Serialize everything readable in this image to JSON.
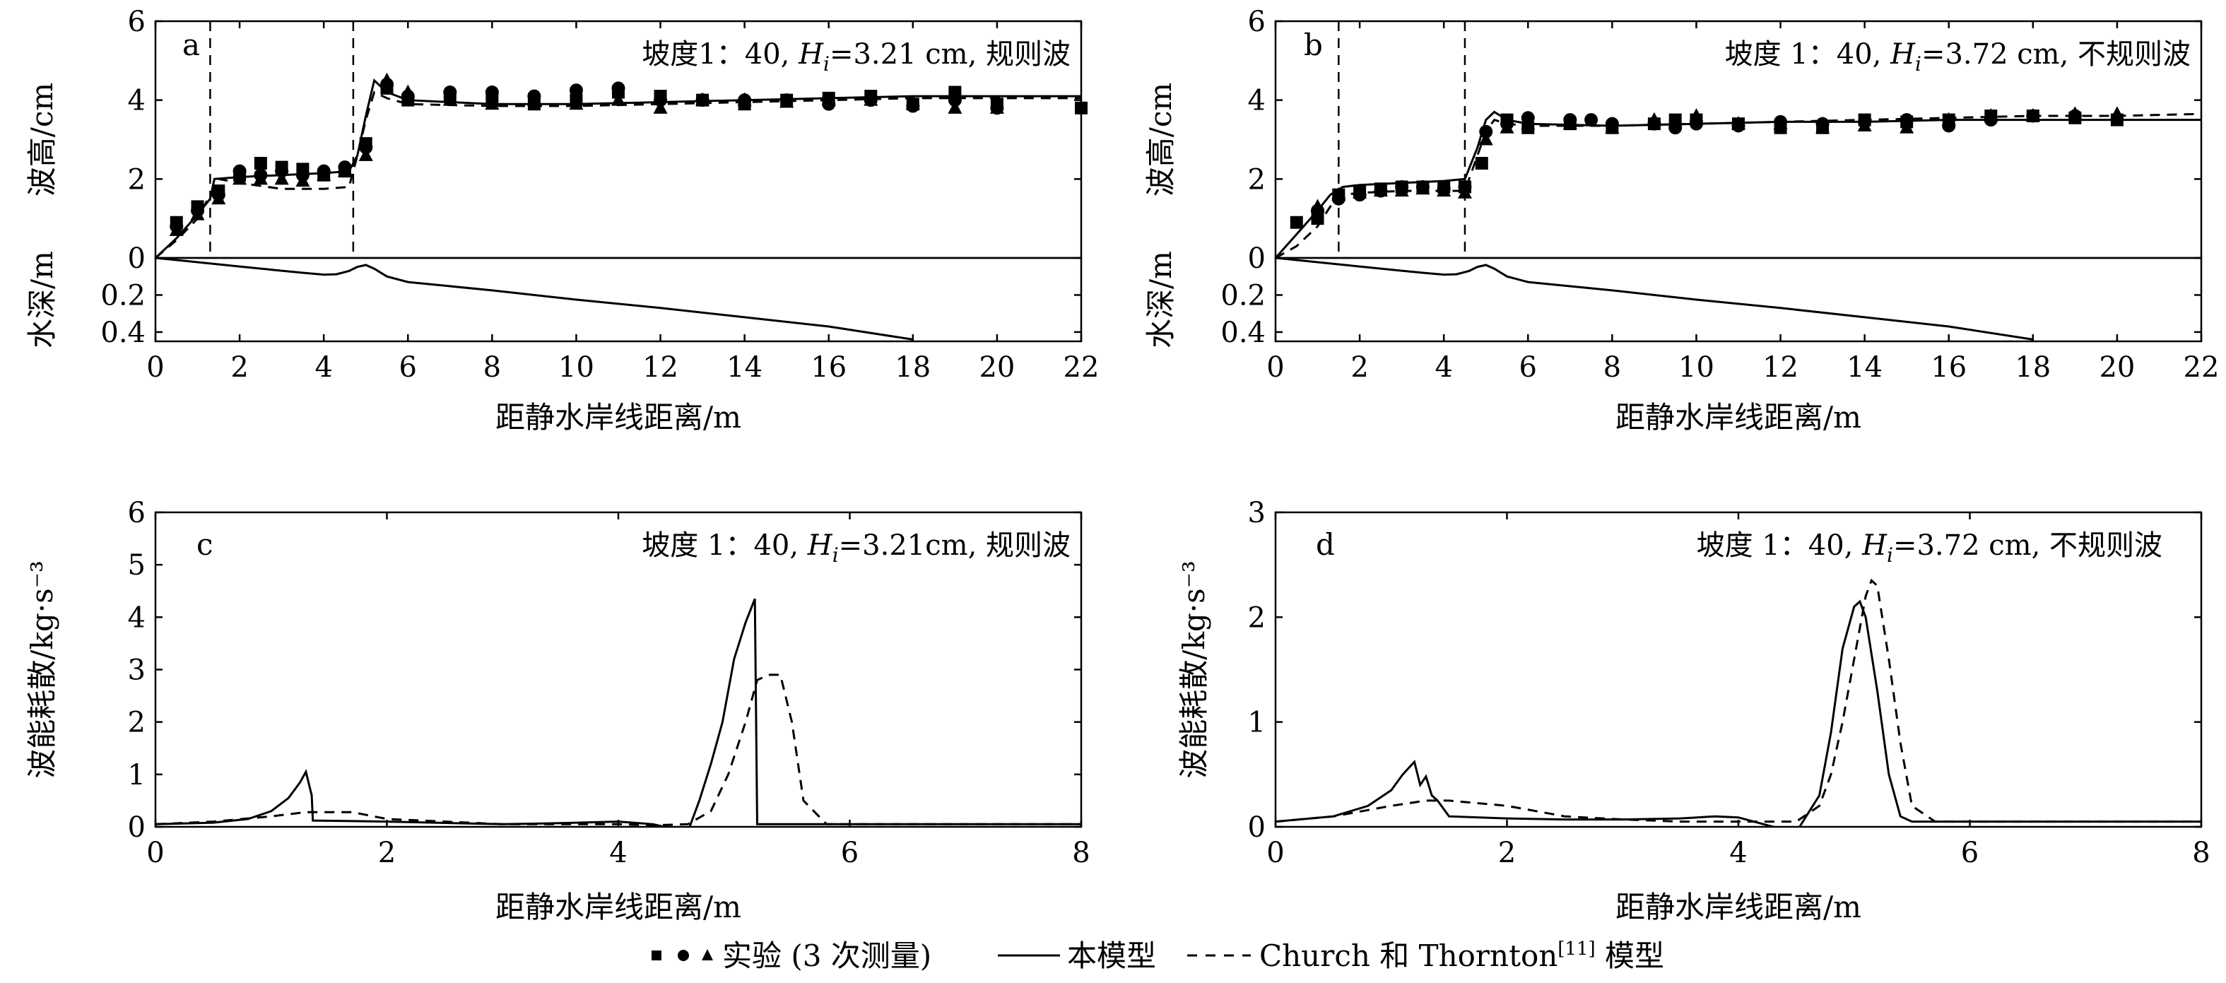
{
  "chart_data": [
    {
      "panel": "a",
      "type": "line",
      "title": "坡度1：40, H_i=3.21 cm, 规则波",
      "title_parts": {
        "pre": "坡度1：40, ",
        "var": "H",
        "sub": "i",
        "post": "=3.21 cm, 规则波"
      },
      "ylabel": "波高/cm",
      "xlabel": "距静水岸线距离/m",
      "ylim": [
        0,
        6
      ],
      "yticks": [
        "0",
        "2",
        "4",
        "6"
      ],
      "xlim": [
        0,
        22
      ],
      "xticks": [
        "0",
        "2",
        "4",
        "6",
        "8",
        "10",
        "12",
        "14",
        "16",
        "18",
        "20",
        "22"
      ],
      "vlines": [
        1.3,
        4.7
      ],
      "depth": {
        "ylabel": "水深/m",
        "ylim": [
          0,
          0.45
        ],
        "yticks": [
          "0.2",
          "0.4"
        ],
        "x": [
          0,
          1,
          2,
          3,
          3.5,
          4,
          4.3,
          4.6,
          4.8,
          5.0,
          5.2,
          5.5,
          6,
          8,
          10,
          12,
          14,
          16,
          18
        ],
        "y": [
          0,
          0.023,
          0.046,
          0.069,
          0.08,
          0.09,
          0.088,
          0.07,
          0.048,
          0.038,
          0.058,
          0.1,
          0.13,
          0.175,
          0.225,
          0.27,
          0.32,
          0.37,
          0.44
        ]
      },
      "series": [
        {
          "name": "本模型",
          "style": "solid",
          "x": [
            0,
            0.5,
            1.0,
            1.3,
            1.4,
            2,
            3,
            4,
            4.6,
            4.8,
            5.0,
            5.2,
            5.5,
            6,
            8,
            10,
            12,
            14,
            16,
            18,
            20,
            22
          ],
          "y": [
            0,
            0.5,
            1.1,
            1.5,
            2.0,
            2.05,
            2.1,
            2.15,
            2.2,
            2.6,
            3.6,
            4.5,
            4.2,
            4.0,
            3.9,
            3.9,
            3.95,
            4.0,
            4.05,
            4.1,
            4.1,
            4.1
          ]
        },
        {
          "name": "Church 和 Thornton[11] 模型",
          "style": "dashed",
          "x": [
            0,
            0.5,
            1.0,
            1.3,
            1.5,
            2,
            3,
            4,
            4.6,
            4.8,
            5.0,
            5.2,
            5.5,
            6,
            8,
            10,
            12,
            14,
            16,
            18,
            20,
            22
          ],
          "y": [
            0,
            0.45,
            1.0,
            1.6,
            2.0,
            1.9,
            1.75,
            1.75,
            1.8,
            2.6,
            3.5,
            4.2,
            4.05,
            3.9,
            3.85,
            3.85,
            3.9,
            3.95,
            4.0,
            4.05,
            4.05,
            4.05
          ]
        },
        {
          "name": "实验 1",
          "style": "square",
          "x": [
            0.5,
            1,
            1.5,
            2,
            2.5,
            3,
            3.5,
            4,
            4.5,
            5,
            5.5,
            6,
            7,
            8,
            9,
            10,
            11,
            12,
            13,
            14,
            15,
            16,
            17,
            18,
            19,
            20,
            22
          ],
          "y": [
            0.9,
            1.3,
            1.7,
            2.1,
            2.4,
            2.3,
            2.25,
            2.1,
            2.2,
            2.9,
            4.3,
            4.0,
            4.1,
            4.0,
            3.9,
            4.0,
            4.2,
            4.1,
            4.0,
            3.9,
            4.0,
            4.05,
            4.1,
            3.9,
            4.2,
            3.9,
            3.8
          ]
        },
        {
          "name": "实验 2",
          "style": "circle",
          "x": [
            0.5,
            1,
            1.5,
            2,
            2.5,
            3,
            3.5,
            4,
            4.5,
            5,
            5.5,
            6,
            7,
            8,
            9,
            10,
            11,
            12,
            13,
            14,
            15,
            16,
            17,
            18,
            19,
            20
          ],
          "y": [
            0.8,
            1.2,
            1.6,
            2.2,
            2.1,
            2.2,
            2.1,
            2.2,
            2.3,
            2.8,
            4.4,
            4.1,
            4.2,
            4.2,
            4.1,
            4.25,
            4.3,
            4.0,
            4.0,
            4.0,
            4.0,
            3.9,
            4.0,
            3.85,
            4.0,
            3.8
          ]
        },
        {
          "name": "实验 3",
          "style": "triangle",
          "x": [
            0.5,
            1,
            1.5,
            2,
            2.5,
            3,
            3.5,
            4,
            4.5,
            5,
            5.5,
            6,
            7,
            8,
            9,
            10,
            11,
            12,
            13,
            14,
            15,
            16,
            17,
            18,
            19,
            20
          ],
          "y": [
            0.7,
            1.1,
            1.5,
            2.0,
            2.0,
            2.0,
            1.95,
            2.1,
            2.2,
            2.6,
            4.5,
            4.2,
            4.0,
            3.9,
            4.0,
            3.9,
            4.0,
            3.8,
            4.0,
            4.0,
            3.95,
            4.0,
            4.0,
            3.9,
            3.8,
            3.8
          ]
        }
      ]
    },
    {
      "panel": "b",
      "type": "line",
      "title": "坡度 1：40, H_i=3.72 cm, 不规则波",
      "title_parts": {
        "pre": "坡度 1：40, ",
        "var": "H",
        "sub": "i",
        "post": "=3.72 cm, 不规则波"
      },
      "ylabel": "波高/cm",
      "xlabel": "距静水岸线距离/m",
      "ylim": [
        0,
        6
      ],
      "yticks": [
        "0",
        "2",
        "4",
        "6"
      ],
      "xlim": [
        0,
        22
      ],
      "xticks": [
        "0",
        "2",
        "4",
        "6",
        "8",
        "10",
        "12",
        "14",
        "16",
        "18",
        "20",
        "22"
      ],
      "vlines": [
        1.5,
        4.5
      ],
      "depth": {
        "ylabel": "水深/m",
        "ylim": [
          0,
          0.45
        ],
        "yticks": [
          "0.2",
          "0.4"
        ],
        "x": [
          0,
          1,
          2,
          3,
          3.5,
          4,
          4.3,
          4.6,
          4.8,
          5.0,
          5.2,
          5.5,
          6,
          8,
          10,
          12,
          14,
          16,
          18
        ],
        "y": [
          0,
          0.023,
          0.046,
          0.069,
          0.08,
          0.09,
          0.088,
          0.07,
          0.048,
          0.038,
          0.058,
          0.1,
          0.13,
          0.175,
          0.225,
          0.27,
          0.32,
          0.37,
          0.44
        ]
      },
      "series": [
        {
          "name": "本模型",
          "style": "solid",
          "x": [
            0,
            0.5,
            1.0,
            1.3,
            1.6,
            2,
            3,
            4,
            4.5,
            4.8,
            5.0,
            5.2,
            5.5,
            6,
            8,
            10,
            12,
            14,
            16,
            18,
            20,
            22
          ],
          "y": [
            0,
            0.6,
            1.2,
            1.6,
            1.8,
            1.85,
            1.9,
            1.95,
            2.0,
            2.8,
            3.5,
            3.7,
            3.5,
            3.4,
            3.35,
            3.4,
            3.45,
            3.45,
            3.5,
            3.5,
            3.5,
            3.5
          ]
        },
        {
          "name": "Church 和 Thornton[11] 模型",
          "style": "dashed",
          "x": [
            0,
            0.5,
            1.0,
            1.3,
            1.6,
            2,
            3,
            4,
            4.5,
            4.8,
            5.0,
            5.2,
            5.5,
            6,
            8,
            10,
            12,
            14,
            16,
            18,
            20,
            22
          ],
          "y": [
            0,
            0.3,
            0.8,
            1.3,
            1.6,
            1.65,
            1.7,
            1.7,
            1.7,
            2.6,
            3.2,
            3.5,
            3.4,
            3.35,
            3.35,
            3.4,
            3.45,
            3.5,
            3.55,
            3.6,
            3.6,
            3.65
          ]
        },
        {
          "name": "实验 1",
          "style": "square",
          "x": [
            0.5,
            1,
            1.5,
            2,
            2.5,
            3,
            3.5,
            4,
            4.5,
            4.9,
            5.5,
            6,
            7,
            8,
            9,
            9.5,
            10,
            11,
            12,
            13,
            14,
            15,
            16,
            17,
            18,
            19,
            20
          ],
          "y": [
            0.9,
            1.0,
            1.6,
            1.7,
            1.75,
            1.8,
            1.8,
            1.8,
            1.8,
            2.4,
            3.5,
            3.3,
            3.4,
            3.3,
            3.4,
            3.5,
            3.5,
            3.4,
            3.3,
            3.3,
            3.5,
            3.45,
            3.5,
            3.6,
            3.6,
            3.55,
            3.5
          ]
        },
        {
          "name": "实验 2",
          "style": "circle",
          "x": [
            1,
            1.5,
            2,
            2.5,
            3,
            3.5,
            4,
            4.5,
            5,
            5.5,
            6,
            7,
            7.5,
            8,
            9,
            9.5,
            10,
            11,
            12,
            13,
            14,
            15,
            16,
            17,
            18,
            19
          ],
          "y": [
            1.2,
            1.5,
            1.6,
            1.7,
            1.8,
            1.8,
            1.75,
            1.8,
            3.2,
            3.4,
            3.55,
            3.5,
            3.5,
            3.4,
            3.4,
            3.3,
            3.4,
            3.35,
            3.45,
            3.4,
            3.45,
            3.5,
            3.35,
            3.5,
            3.6,
            3.6
          ]
        },
        {
          "name": "实验 3",
          "style": "triangle",
          "x": [
            1,
            1.5,
            2,
            2.5,
            3,
            3.5,
            4,
            4.5,
            5,
            5.5,
            6,
            7,
            8,
            9,
            10,
            11,
            12,
            13,
            14,
            15,
            16,
            17,
            18,
            19,
            20
          ],
          "y": [
            1.3,
            1.6,
            1.65,
            1.7,
            1.7,
            1.75,
            1.7,
            1.65,
            3.0,
            3.3,
            3.4,
            3.4,
            3.3,
            3.5,
            3.6,
            3.4,
            3.4,
            3.3,
            3.35,
            3.3,
            3.5,
            3.6,
            3.6,
            3.65,
            3.65
          ]
        }
      ]
    },
    {
      "panel": "c",
      "type": "line",
      "title": "坡度 1：40, H_i=3.21cm, 规则波",
      "title_parts": {
        "pre": "坡度 1：40, ",
        "var": "H",
        "sub": "i",
        "post": "=3.21cm, 规则波"
      },
      "ylabel": "波能耗散/kg·s⁻³",
      "xlabel": "距静水岸线距离/m",
      "ylim": [
        0,
        6
      ],
      "yticks": [
        "0",
        "1",
        "2",
        "3",
        "4",
        "5",
        "6"
      ],
      "xlim": [
        0,
        8
      ],
      "xticks": [
        "0",
        "2",
        "4",
        "6",
        "8"
      ],
      "series": [
        {
          "name": "本模型",
          "style": "solid",
          "x": [
            0,
            0.5,
            0.8,
            1.0,
            1.15,
            1.25,
            1.3,
            1.35,
            1.36,
            2,
            3,
            3.5,
            4.0,
            4.3,
            4.6,
            4.7,
            4.8,
            4.9,
            5.0,
            5.1,
            5.18,
            5.2,
            5.5,
            6,
            7,
            8
          ],
          "y": [
            0.05,
            0.08,
            0.15,
            0.3,
            0.55,
            0.85,
            1.05,
            0.6,
            0.12,
            0.1,
            0.05,
            0.07,
            0.1,
            0.05,
            -0.1,
            0.5,
            1.2,
            2.0,
            3.2,
            3.9,
            4.35,
            0.05,
            0.05,
            0.05,
            0.05,
            0.05
          ]
        },
        {
          "name": "Church 和 Thornton[11] 模型",
          "style": "dashed",
          "x": [
            0,
            0.5,
            1.0,
            1.3,
            1.7,
            2,
            2.5,
            3,
            3.5,
            4.0,
            4.3,
            4.6,
            4.8,
            4.95,
            5.1,
            5.2,
            5.3,
            5.4,
            5.5,
            5.6,
            5.8,
            6,
            7,
            8
          ],
          "y": [
            0.05,
            0.1,
            0.2,
            0.28,
            0.28,
            0.15,
            0.1,
            0.05,
            0.05,
            0.05,
            0.03,
            0.05,
            0.3,
            1.0,
            2.0,
            2.8,
            2.9,
            2.9,
            2.0,
            0.5,
            0.05,
            0.05,
            0.05,
            0.05
          ]
        }
      ]
    },
    {
      "panel": "d",
      "type": "line",
      "title": "坡度 1：40, H_i=3.72 cm, 不规则波",
      "title_parts": {
        "pre": "坡度 1：40, ",
        "var": "H",
        "sub": "i",
        "post": "=3.72 cm, 不规则波"
      },
      "ylabel": "波能耗散/kg·s⁻³",
      "xlabel": "距静水岸线距离/m",
      "ylim": [
        0,
        3
      ],
      "yticks": [
        "0",
        "1",
        "2",
        "3"
      ],
      "xlim": [
        0,
        8
      ],
      "xticks": [
        "0",
        "2",
        "4",
        "6",
        "8"
      ],
      "series": [
        {
          "name": "本模型",
          "style": "solid",
          "x": [
            0,
            0.5,
            0.8,
            1.0,
            1.1,
            1.2,
            1.25,
            1.3,
            1.35,
            1.4,
            1.5,
            2,
            2.5,
            3,
            3.5,
            3.8,
            4.0,
            4.3,
            4.5,
            4.7,
            4.8,
            4.9,
            5.0,
            5.05,
            5.1,
            5.2,
            5.3,
            5.4,
            5.5,
            6,
            7,
            8
          ],
          "y": [
            0.05,
            0.1,
            0.2,
            0.35,
            0.5,
            0.62,
            0.4,
            0.48,
            0.3,
            0.25,
            0.1,
            0.08,
            0.07,
            0.07,
            0.08,
            0.1,
            0.09,
            0.0,
            -0.05,
            0.3,
            0.9,
            1.7,
            2.1,
            2.15,
            2.0,
            1.3,
            0.5,
            0.1,
            0.05,
            0.05,
            0.05,
            0.05
          ]
        },
        {
          "name": "Church 和 Thornton[11] 模型",
          "style": "dashed",
          "x": [
            0,
            0.5,
            1.0,
            1.3,
            1.5,
            2,
            2.5,
            3,
            3.5,
            4.0,
            4.5,
            4.7,
            4.8,
            4.9,
            5.0,
            5.1,
            5.15,
            5.2,
            5.3,
            5.4,
            5.5,
            5.7,
            6,
            7,
            8
          ],
          "y": [
            0.05,
            0.1,
            0.2,
            0.25,
            0.25,
            0.2,
            0.1,
            0.07,
            0.05,
            0.05,
            0.05,
            0.2,
            0.5,
            1.0,
            1.6,
            2.2,
            2.35,
            2.3,
            1.6,
            0.8,
            0.2,
            0.05,
            0.05,
            0.05,
            0.05
          ]
        }
      ]
    }
  ],
  "legend": {
    "experiment_label": "实验 (3 次测量)",
    "model_label": "本模型",
    "church_label": "Church 和 Thornton",
    "church_ref": "[11]",
    "church_suffix": " 模型"
  }
}
